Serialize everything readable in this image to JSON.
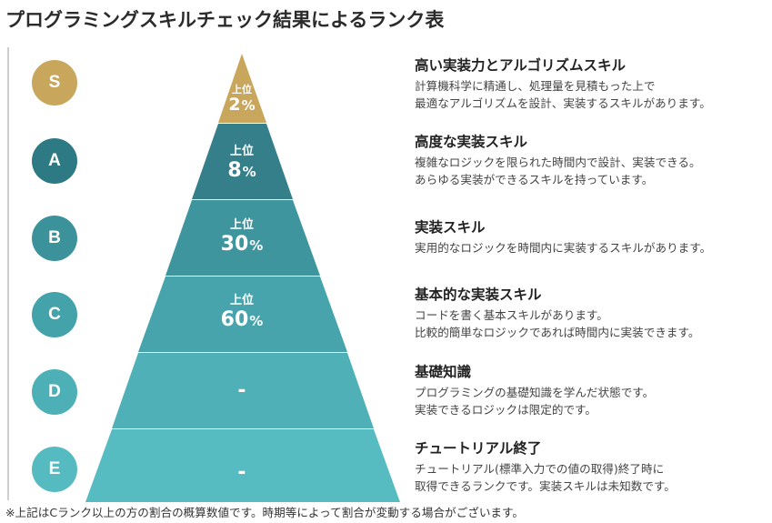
{
  "title": "プログラミングスキルチェック結果によるランク表",
  "colors": {
    "S": "#c8a75d",
    "A": "#2c7d86",
    "B": "#3d9aa3",
    "C": "#49aab2",
    "D": "#4fb4bb",
    "E": "#55bcc3",
    "tierS": "#c8a75d",
    "tierA": "#357f8a",
    "tierB": "#3e959e",
    "tierC": "#47a4ac",
    "tierD": "#4fb0b7",
    "tierE": "#57bcc2"
  },
  "ranks": [
    {
      "rank": "S",
      "label_top": "上位",
      "value": "2",
      "unit": "%",
      "heading": "高い実装力とアルゴリズムスキル",
      "lines": [
        "計算機科学に精通し、処理量を見積もった上で",
        "最適なアルゴリズムを設計、実装するスキルがあります。"
      ]
    },
    {
      "rank": "A",
      "label_top": "上位",
      "value": "8",
      "unit": "%",
      "heading": "高度な実装スキル",
      "lines": [
        "複雑なロジックを限られた時間内で設計、実装できる。",
        "あらゆる実装ができるスキルを持っています。"
      ]
    },
    {
      "rank": "B",
      "label_top": "上位",
      "value": "30",
      "unit": "%",
      "heading": "実装スキル",
      "lines": [
        "実用的なロジックを時間内に実装するスキルがあります。"
      ]
    },
    {
      "rank": "C",
      "label_top": "上位",
      "value": "60",
      "unit": "%",
      "heading": "基本的な実装スキル",
      "lines": [
        "コードを書く基本スキルがあります。",
        "比較的簡単なロジックであれば時間内に実装できます。"
      ]
    },
    {
      "rank": "D",
      "label_top": "",
      "value": "-",
      "unit": "",
      "heading": "基礎知識",
      "lines": [
        "プログラミングの基礎知識を学んだ状態です。",
        "実装できるロジックは限定的です。"
      ]
    },
    {
      "rank": "E",
      "label_top": "",
      "value": "-",
      "unit": "",
      "heading": "チュートリアル終了",
      "lines": [
        "チュートリアル(標準入力での値の取得)終了時に",
        "取得できるランクです。実装スキルは未知数です。"
      ]
    }
  ],
  "footnote": "※上記はCランク以上の方の割合の概算数値です。時期等によって割合が変動する場合がございます。"
}
